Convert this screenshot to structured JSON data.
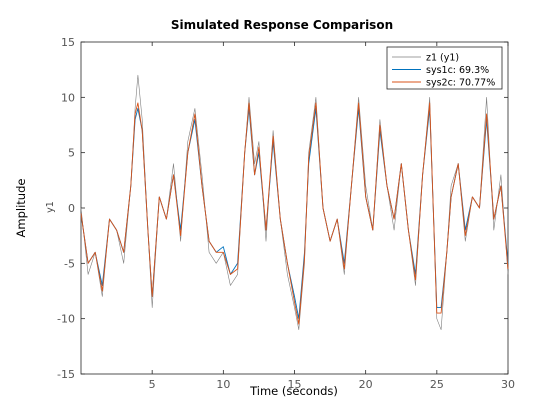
{
  "chart_data": {
    "type": "line",
    "title": "Simulated Response Comparison",
    "xlabel": "Time (seconds)",
    "ylabel": "Amplitude",
    "channel_label": "y1",
    "xlim": [
      0,
      30
    ],
    "ylim": [
      -15,
      15
    ],
    "x_ticks": [
      5,
      10,
      15,
      20,
      25,
      30
    ],
    "y_ticks": [
      -15,
      -10,
      -5,
      0,
      5,
      10,
      15
    ],
    "grid": false,
    "legend_position": "top-right",
    "series": [
      {
        "name": "z1 (y1)",
        "color": "#7f7f7f",
        "x": [
          0,
          0.5,
          1,
          1.5,
          2,
          2.5,
          3,
          3.5,
          3.8,
          4,
          4.3,
          4.7,
          5,
          5.5,
          6,
          6.5,
          7,
          7.5,
          8,
          8.5,
          9,
          9.5,
          10,
          10.5,
          11,
          11.5,
          11.8,
          12.2,
          12.5,
          13,
          13.5,
          14,
          14.5,
          15,
          15.3,
          15.7,
          16,
          16.5,
          17,
          17.5,
          18,
          18.5,
          19,
          19.5,
          20,
          20.5,
          21,
          21.5,
          22,
          22.5,
          23,
          23.5,
          24,
          24.5,
          25,
          25.3,
          25.7,
          26,
          26.5,
          27,
          27.5,
          28,
          28.5,
          29,
          29.5,
          30
        ],
        "y": [
          0,
          -6,
          -4,
          -8,
          -1,
          -2,
          -5,
          2,
          9,
          12,
          8,
          -2,
          -9,
          1,
          -1,
          4,
          -3,
          6,
          9,
          3,
          -4,
          -5,
          -4,
          -7,
          -6,
          5,
          10,
          4,
          6,
          -3,
          7,
          -1,
          -6,
          -9,
          -11,
          -5,
          5,
          10,
          0,
          -3,
          -1,
          -6,
          2,
          10,
          2,
          -2,
          8,
          2,
          -2,
          4,
          -2,
          -7,
          3,
          10,
          -10,
          -11,
          -4,
          2,
          4,
          -3,
          1,
          0,
          10,
          -2,
          3,
          -6
        ]
      },
      {
        "name": "sys1c: 69.3%",
        "color": "#0072bd",
        "x": [
          0,
          0.5,
          1,
          1.5,
          2,
          2.5,
          3,
          3.5,
          3.8,
          4,
          4.3,
          4.7,
          5,
          5.5,
          6,
          6.5,
          7,
          7.5,
          8,
          8.5,
          9,
          9.5,
          10,
          10.5,
          11,
          11.5,
          11.8,
          12.2,
          12.5,
          13,
          13.5,
          14,
          14.5,
          15,
          15.3,
          15.7,
          16,
          16.5,
          17,
          17.5,
          18,
          18.5,
          19,
          19.5,
          20,
          20.5,
          21,
          21.5,
          22,
          22.5,
          23,
          23.5,
          24,
          24.5,
          25,
          25.3,
          25.7,
          26,
          26.5,
          27,
          27.5,
          28,
          28.5,
          29,
          29.5,
          30
        ],
        "y": [
          -0.5,
          -5,
          -4,
          -7,
          -1,
          -2,
          -4,
          2,
          8,
          9,
          7,
          -2,
          -8,
          1,
          -1,
          3,
          -2,
          5,
          8,
          2,
          -3,
          -4,
          -3.5,
          -6,
          -5,
          5,
          9,
          3,
          5,
          -2,
          6,
          -1,
          -5,
          -8,
          -10,
          -4,
          4,
          9,
          0,
          -3,
          -1,
          -5,
          2,
          9,
          1,
          -2,
          7,
          2,
          -1,
          4,
          -2,
          -6,
          3,
          9,
          -9,
          -9,
          -4,
          1,
          4,
          -2,
          1,
          0,
          8,
          -1,
          2,
          -5
        ]
      },
      {
        "name": "sys2c: 70.77%",
        "color": "#d95319",
        "x": [
          0,
          0.5,
          1,
          1.5,
          2,
          2.5,
          3,
          3.5,
          3.8,
          4,
          4.3,
          4.7,
          5,
          5.5,
          6,
          6.5,
          7,
          7.5,
          8,
          8.5,
          9,
          9.5,
          10,
          10.5,
          11,
          11.5,
          11.8,
          12.2,
          12.5,
          13,
          13.5,
          14,
          14.5,
          15,
          15.3,
          15.7,
          16,
          16.5,
          17,
          17.5,
          18,
          18.5,
          19,
          19.5,
          20,
          20.5,
          21,
          21.5,
          22,
          22.5,
          23,
          23.5,
          24,
          24.5,
          25,
          25.3,
          25.7,
          26,
          26.5,
          27,
          27.5,
          28,
          28.5,
          29,
          29.5,
          30
        ],
        "y": [
          -0.5,
          -5,
          -4,
          -7.5,
          -1,
          -2,
          -4,
          2,
          8.5,
          9.5,
          7,
          -2,
          -8,
          1,
          -1,
          3,
          -2.5,
          5,
          8.5,
          2,
          -3,
          -4,
          -4,
          -6,
          -5.5,
          5,
          9.5,
          3,
          5.5,
          -2,
          6.5,
          -1,
          -5,
          -8.5,
          -10.5,
          -4.5,
          4.5,
          9.5,
          0,
          -3,
          -1,
          -5.5,
          2,
          9.5,
          1,
          -2,
          7.5,
          2,
          -1,
          4,
          -2,
          -6.5,
          3,
          9.5,
          -9.5,
          -9.5,
          -4,
          1,
          4,
          -2.5,
          1,
          0,
          8.5,
          -1,
          2,
          -5.5
        ]
      }
    ]
  }
}
